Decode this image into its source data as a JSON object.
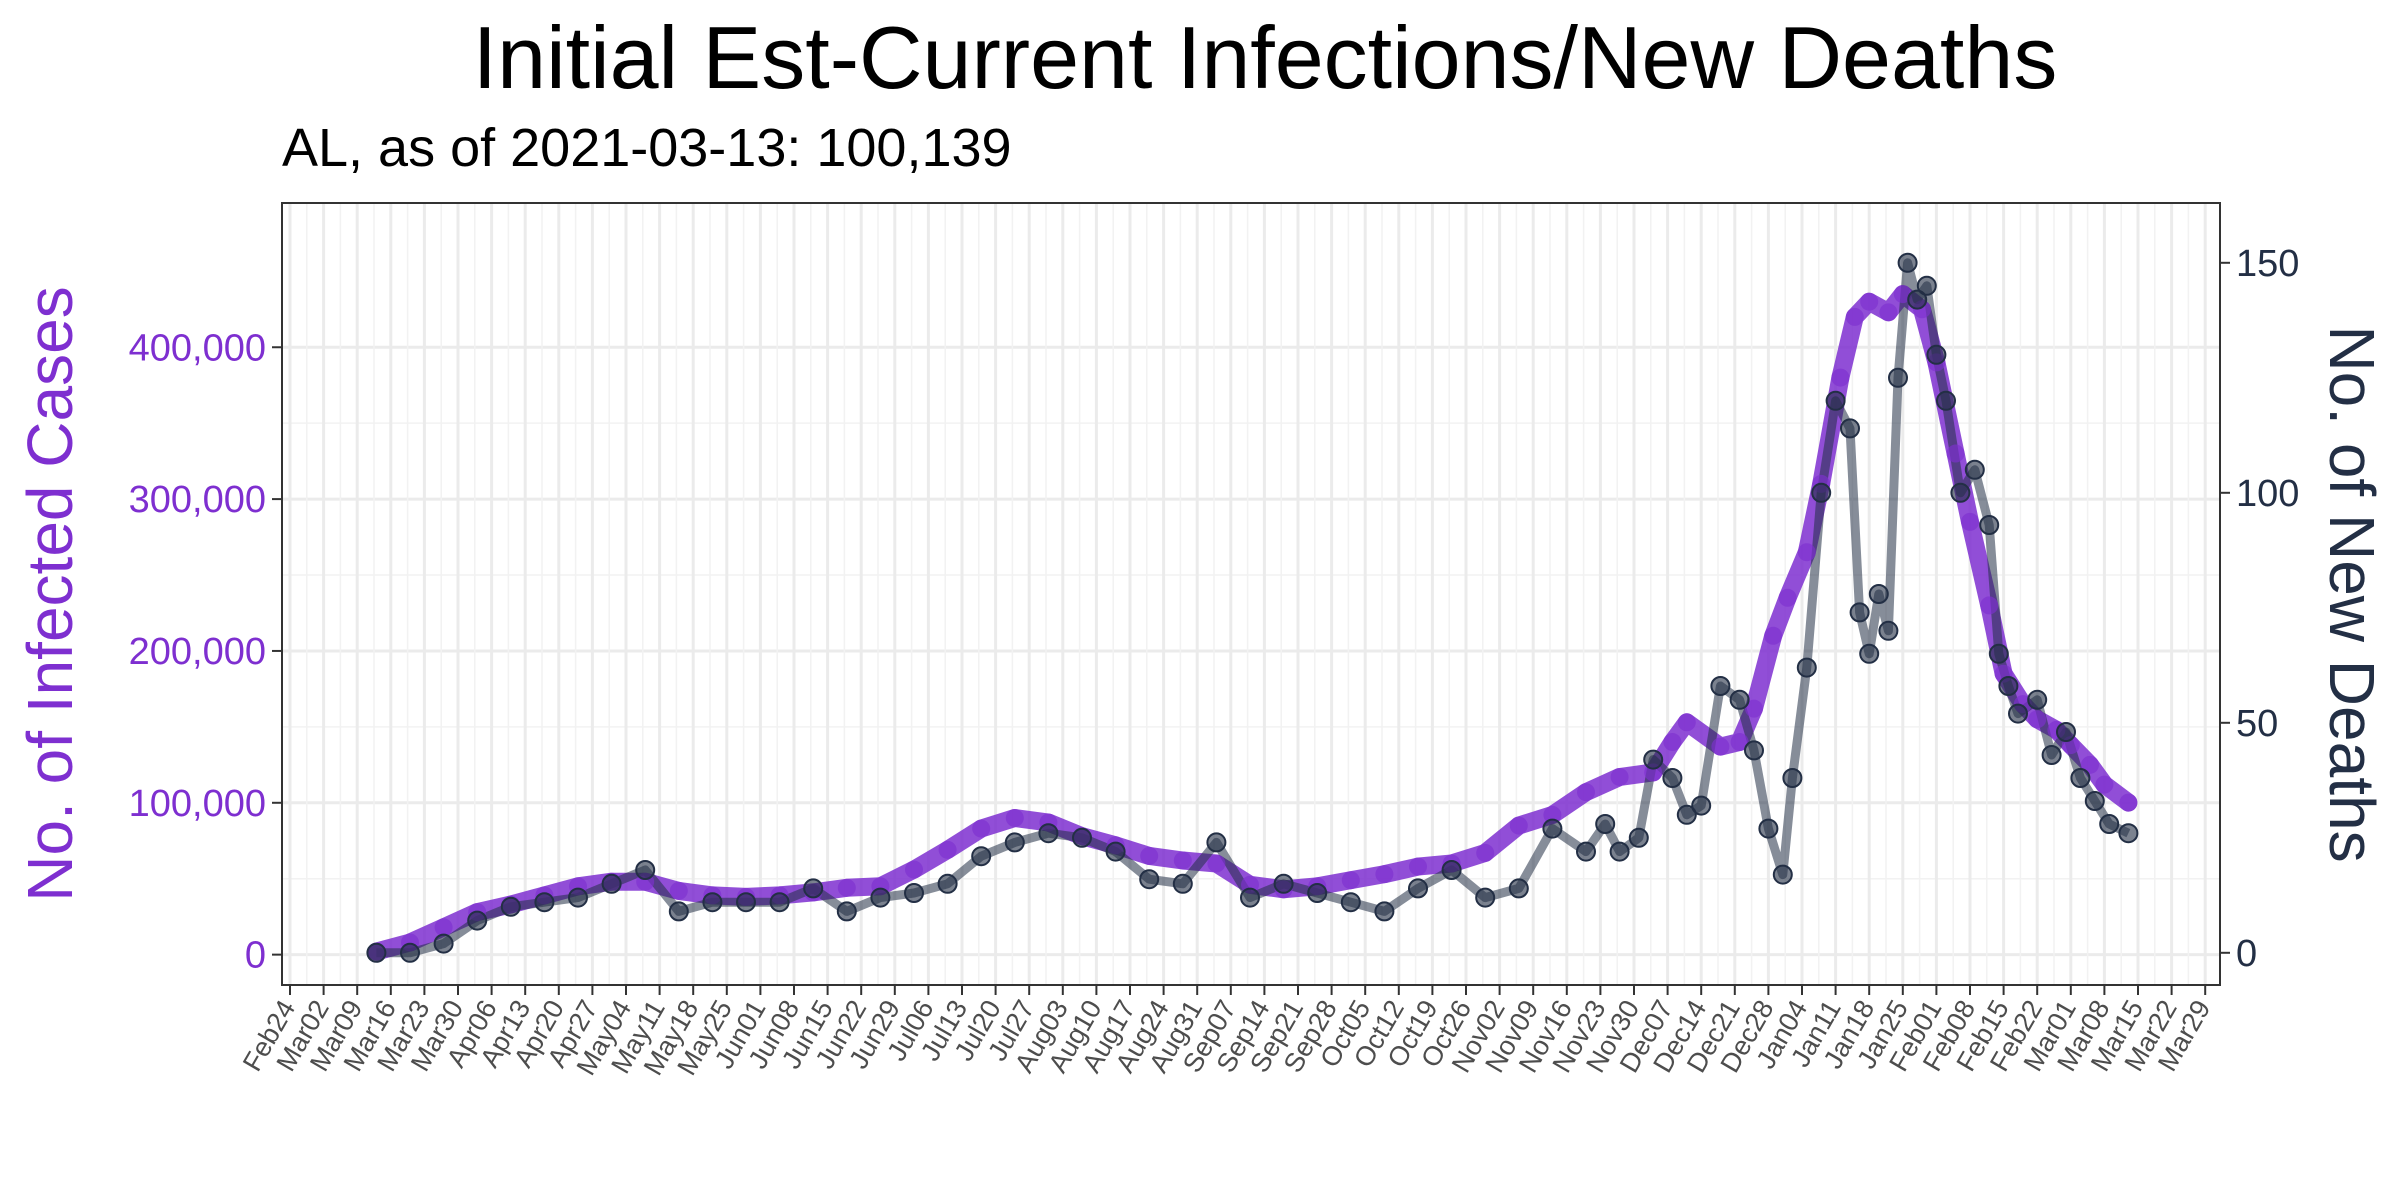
{
  "chart_data": {
    "type": "line",
    "title": "Initial Est-Current Infections/New Deaths",
    "subtitle": "AL, as of 2021-03-13:  100,139",
    "ylabel_left": "No. of Infected Cases",
    "ylabel_right": "No. of New Deaths",
    "x_ticks": [
      "Feb24",
      "Mar02",
      "Mar09",
      "Mar16",
      "Mar23",
      "Mar30",
      "Apr06",
      "Apr13",
      "Apr20",
      "Apr27",
      "May04",
      "May11",
      "May18",
      "May25",
      "Jun01",
      "Jun08",
      "Jun15",
      "Jun22",
      "Jun29",
      "Jul06",
      "Jul13",
      "Jul20",
      "Jul27",
      "Aug03",
      "Aug10",
      "Aug17",
      "Aug24",
      "Aug31",
      "Sep07",
      "Sep14",
      "Sep21",
      "Sep28",
      "Oct05",
      "Oct12",
      "Oct19",
      "Oct26",
      "Nov02",
      "Nov09",
      "Nov16",
      "Nov23",
      "Nov30",
      "Dec07",
      "Dec14",
      "Dec21",
      "Dec28",
      "Jan04",
      "Jan11",
      "Jan18",
      "Jan25",
      "Feb01",
      "Feb08",
      "Feb15",
      "Feb22",
      "Mar01",
      "Mar08",
      "Mar15",
      "Mar22",
      "Mar29"
    ],
    "y_left_ticks": [
      "0",
      "100,000",
      "200,000",
      "300,000",
      "400,000"
    ],
    "y_left_range": [
      -20000,
      495000
    ],
    "y_right_ticks": [
      "0",
      "50",
      "100",
      "150"
    ],
    "y_right_range": [
      -7,
      163
    ],
    "x_range_days": [
      0,
      35
    ],
    "grid": true,
    "series": [
      {
        "name": "No. of Infected Cases",
        "axis": "left",
        "color": "#7e2fd0",
        "dates": [
          "2020-03-13",
          "2020-03-20",
          "2020-03-27",
          "2020-04-03",
          "2020-04-10",
          "2020-04-17",
          "2020-04-24",
          "2020-05-01",
          "2020-05-08",
          "2020-05-15",
          "2020-05-22",
          "2020-05-29",
          "2020-06-05",
          "2020-06-12",
          "2020-06-19",
          "2020-06-26",
          "2020-07-03",
          "2020-07-10",
          "2020-07-17",
          "2020-07-24",
          "2020-07-31",
          "2020-08-07",
          "2020-08-14",
          "2020-08-21",
          "2020-08-28",
          "2020-09-04",
          "2020-09-11",
          "2020-09-18",
          "2020-09-25",
          "2020-10-02",
          "2020-10-09",
          "2020-10-16",
          "2020-10-23",
          "2020-10-30",
          "2020-11-06",
          "2020-11-13",
          "2020-11-20",
          "2020-11-27",
          "2020-12-04",
          "2020-12-08",
          "2020-12-11",
          "2020-12-18",
          "2020-12-22",
          "2020-12-25",
          "2020-12-29",
          "2021-01-01",
          "2021-01-05",
          "2021-01-08",
          "2021-01-12",
          "2021-01-15",
          "2021-01-18",
          "2021-01-22",
          "2021-01-25",
          "2021-01-29",
          "2021-02-01",
          "2021-02-05",
          "2021-02-08",
          "2021-02-12",
          "2021-02-15",
          "2021-02-19",
          "2021-02-22",
          "2021-02-26",
          "2021-03-01",
          "2021-03-05",
          "2021-03-08",
          "2021-03-13"
        ],
        "values": [
          2000,
          8000,
          18000,
          28000,
          33000,
          39000,
          45000,
          48000,
          48000,
          42000,
          39000,
          38000,
          39000,
          41000,
          44000,
          45000,
          56000,
          69000,
          83000,
          90000,
          87000,
          78000,
          72000,
          65000,
          62000,
          60000,
          46000,
          43000,
          45000,
          49000,
          53000,
          58000,
          60000,
          67000,
          85000,
          92000,
          107000,
          117000,
          120000,
          140000,
          153000,
          137000,
          140000,
          162000,
          210000,
          235000,
          265000,
          310000,
          380000,
          420000,
          430000,
          423000,
          435000,
          425000,
          390000,
          330000,
          285000,
          230000,
          185000,
          165000,
          155000,
          148000,
          138000,
          125000,
          112000,
          100139
        ]
      },
      {
        "name": "No. of New Deaths",
        "axis": "right",
        "color": "#232f45",
        "dates": [
          "2020-03-13",
          "2020-03-20",
          "2020-03-27",
          "2020-04-03",
          "2020-04-10",
          "2020-04-17",
          "2020-04-24",
          "2020-05-01",
          "2020-05-08",
          "2020-05-15",
          "2020-05-22",
          "2020-05-29",
          "2020-06-05",
          "2020-06-12",
          "2020-06-19",
          "2020-06-26",
          "2020-07-03",
          "2020-07-10",
          "2020-07-17",
          "2020-07-24",
          "2020-07-31",
          "2020-08-07",
          "2020-08-14",
          "2020-08-21",
          "2020-08-28",
          "2020-09-04",
          "2020-09-11",
          "2020-09-18",
          "2020-09-25",
          "2020-10-02",
          "2020-10-09",
          "2020-10-16",
          "2020-10-23",
          "2020-10-30",
          "2020-11-06",
          "2020-11-13",
          "2020-11-20",
          "2020-11-24",
          "2020-11-27",
          "2020-12-01",
          "2020-12-04",
          "2020-12-08",
          "2020-12-11",
          "2020-12-14",
          "2020-12-18",
          "2020-12-22",
          "2020-12-25",
          "2020-12-28",
          "2020-12-31",
          "2021-01-02",
          "2021-01-05",
          "2021-01-08",
          "2021-01-11",
          "2021-01-14",
          "2021-01-16",
          "2021-01-18",
          "2021-01-20",
          "2021-01-22",
          "2021-01-24",
          "2021-01-26",
          "2021-01-28",
          "2021-01-30",
          "2021-02-01",
          "2021-02-03",
          "2021-02-06",
          "2021-02-09",
          "2021-02-12",
          "2021-02-14",
          "2021-02-16",
          "2021-02-18",
          "2021-02-22",
          "2021-02-25",
          "2021-02-28",
          "2021-03-03",
          "2021-03-06",
          "2021-03-09",
          "2021-03-13"
        ],
        "values": [
          0,
          0,
          2,
          7,
          10,
          11,
          12,
          15,
          18,
          9,
          11,
          11,
          11,
          14,
          9,
          12,
          13,
          15,
          21,
          24,
          26,
          25,
          22,
          16,
          15,
          24,
          12,
          15,
          13,
          11,
          9,
          14,
          18,
          12,
          14,
          27,
          22,
          28,
          22,
          25,
          42,
          38,
          30,
          32,
          58,
          55,
          44,
          27,
          17,
          38,
          62,
          100,
          120,
          114,
          74,
          65,
          78,
          70,
          125,
          150,
          142,
          145,
          130,
          120,
          100,
          105,
          93,
          65,
          58,
          52,
          55,
          43,
          48,
          38,
          33,
          28,
          26
        ]
      }
    ]
  }
}
